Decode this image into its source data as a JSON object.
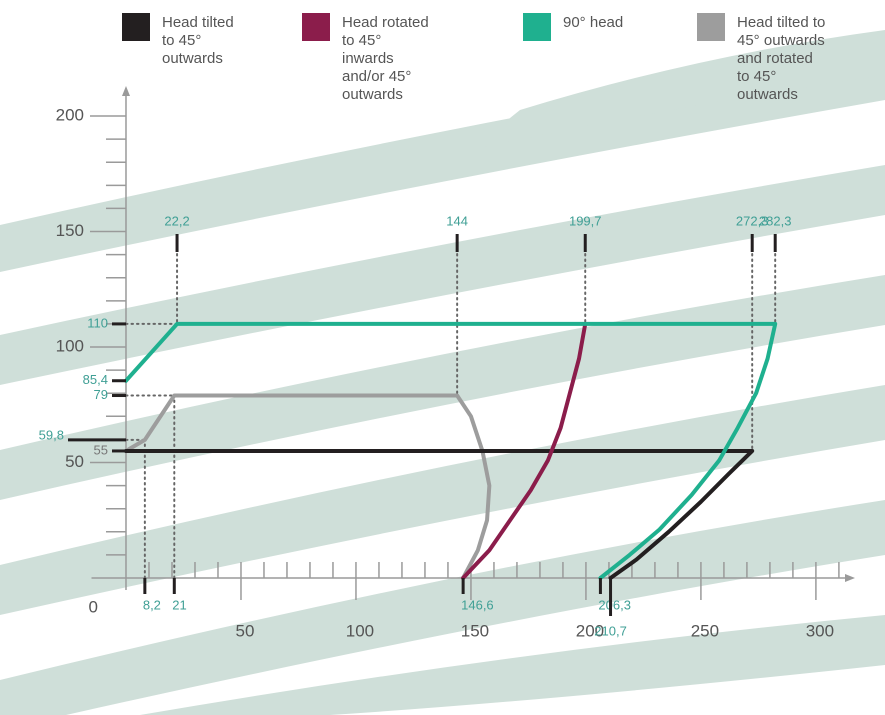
{
  "chart_data": {
    "type": "line",
    "series": [
      {
        "name": "Head tilted to 45° outwards",
        "color": "#231f20",
        "x": [
          0,
          272.3,
          262,
          250,
          236,
          222,
          210.7
        ],
        "values": [
          55,
          55,
          45,
          33,
          20,
          8,
          0
        ]
      },
      {
        "name": "Head rotated to 45° inwards and/or 45° outwards",
        "color": "#8b1d4b",
        "x": [
          146.6,
          158,
          167,
          176,
          183.5,
          189,
          193,
          197,
          199.7
        ],
        "values": [
          0,
          12,
          25,
          38,
          51,
          65,
          80,
          95,
          110
        ]
      },
      {
        "name": "90° head",
        "color": "#1fb08f",
        "x": [
          0,
          22.2,
          282.3,
          279,
          274,
          266,
          258,
          246,
          232,
          219,
          206.3
        ],
        "values": [
          85.4,
          110,
          110,
          95,
          80,
          65,
          51,
          36,
          21,
          10,
          0
        ]
      },
      {
        "name": "Head tilted to 45° outwards and rotated to 45° outwards",
        "color": "#9d9d9d",
        "x": [
          0,
          8.2,
          21,
          144,
          150,
          155,
          158,
          157,
          153,
          146.6
        ],
        "values": [
          55,
          59.8,
          79,
          79,
          70,
          55,
          40,
          25,
          12,
          0
        ]
      }
    ],
    "xlim": [
      -15,
      317
    ],
    "ylim": [
      0,
      213
    ],
    "xticks": [
      50,
      100,
      150,
      200,
      250,
      300
    ],
    "yticks": [
      0,
      50,
      100,
      150,
      200
    ],
    "xminor": [
      10,
      20,
      30,
      40,
      60,
      70,
      80,
      90,
      110,
      120,
      130,
      140,
      160,
      170,
      180,
      190,
      210,
      220,
      230,
      240,
      260,
      270,
      280,
      290,
      310
    ],
    "yminor": [
      10,
      20,
      30,
      40,
      60,
      70,
      80,
      90,
      110,
      120,
      130,
      140,
      160,
      170,
      180,
      190
    ],
    "x_markers_top": [
      {
        "value": 22.2,
        "label": "22,2"
      },
      144,
      {
        "value": 199.7,
        "label": "199,7"
      },
      {
        "value": 272.3,
        "label": "272,3"
      },
      {
        "value": 282.3,
        "label": "282,3"
      }
    ],
    "x_markers_bottom": [
      {
        "value": 8.2,
        "label": "8,2"
      },
      21,
      {
        "value": 146.6,
        "label": "146,6"
      },
      {
        "value": 206.3,
        "label": "206,3"
      },
      {
        "value": 210.7,
        "label": "210,7"
      }
    ],
    "y_markers": [
      110,
      {
        "value": 85.4,
        "label": "85,4"
      },
      79,
      {
        "value": 59.8,
        "label": "59,8"
      },
      55
    ]
  }
}
